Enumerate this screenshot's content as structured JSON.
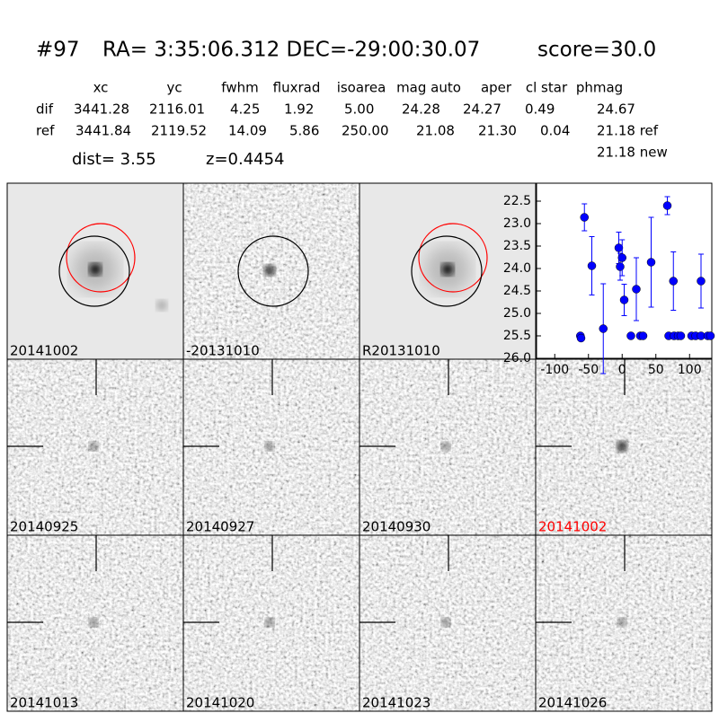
{
  "header": {
    "id": "#97",
    "coords": "RA= 3:35:06.312 DEC=-29:00:30.07",
    "score": "score=30.0"
  },
  "table": {
    "columns": [
      "xc",
      "yc",
      "fwhm",
      "fluxrad",
      "isoarea",
      "mag auto",
      "aper",
      "cl star",
      "phmag"
    ],
    "rows": [
      [
        "dif",
        "3441.28",
        "2116.01",
        "4.25",
        "1.92",
        "5.00",
        "24.28",
        "24.27",
        "0.49",
        "24.67"
      ],
      [
        "ref",
        "3441.84",
        "2119.52",
        "14.09",
        "5.86",
        "250.00",
        "21.08",
        "21.30",
        "0.04",
        "21.18 ref"
      ]
    ],
    "extra": "21.18 new"
  },
  "dist": "dist=  3.55",
  "z": "z=0.4454",
  "panels": [
    "20141002",
    "-20131010",
    "R20131010",
    "20140925",
    "20140927",
    "20140930",
    "20141002",
    "20141013",
    "20141020",
    "20141023",
    "20141026"
  ],
  "chart_data": {
    "type": "scatter",
    "color": "#0000ff",
    "x": [
      -62,
      -61,
      -56,
      -45,
      -28,
      -5,
      -3,
      0,
      3,
      13,
      21,
      27,
      31,
      43,
      67,
      69,
      76,
      77,
      83,
      87,
      103,
      109,
      117,
      117,
      127,
      131
    ],
    "values": [
      25.5,
      25.55,
      22.86,
      23.94,
      25.34,
      23.54,
      23.96,
      23.76,
      24.7,
      25.5,
      24.46,
      25.5,
      25.5,
      23.86,
      22.6,
      25.5,
      24.28,
      25.5,
      25.5,
      25.5,
      25.5,
      25.5,
      24.28,
      25.5,
      25.5,
      25.5
    ],
    "errors": [
      null,
      null,
      0.3,
      0.65,
      1.0,
      0.35,
      0.3,
      0.4,
      0.35,
      null,
      0.7,
      null,
      null,
      1.0,
      0.2,
      null,
      0.65,
      null,
      null,
      null,
      null,
      null,
      0.6,
      null,
      null,
      null
    ],
    "xlim": [
      -127,
      133
    ],
    "ylim": [
      26.0,
      22.1
    ],
    "xticks": [
      -100,
      -50,
      0,
      50,
      100
    ],
    "yticks": [
      {
        "value": 22.5,
        "label": "22.5"
      },
      {
        "value": 23.0,
        "label": "23.0"
      },
      {
        "value": 23.5,
        "label": "23.5"
      },
      {
        "value": 24.0,
        "label": "24.0"
      },
      {
        "value": 24.5,
        "label": "24.5"
      },
      {
        "value": 25.0,
        "label": "25.0"
      },
      {
        "value": 25.5,
        "label": "25.5"
      },
      {
        "value": 26.0,
        "label": "26.0"
      }
    ]
  }
}
